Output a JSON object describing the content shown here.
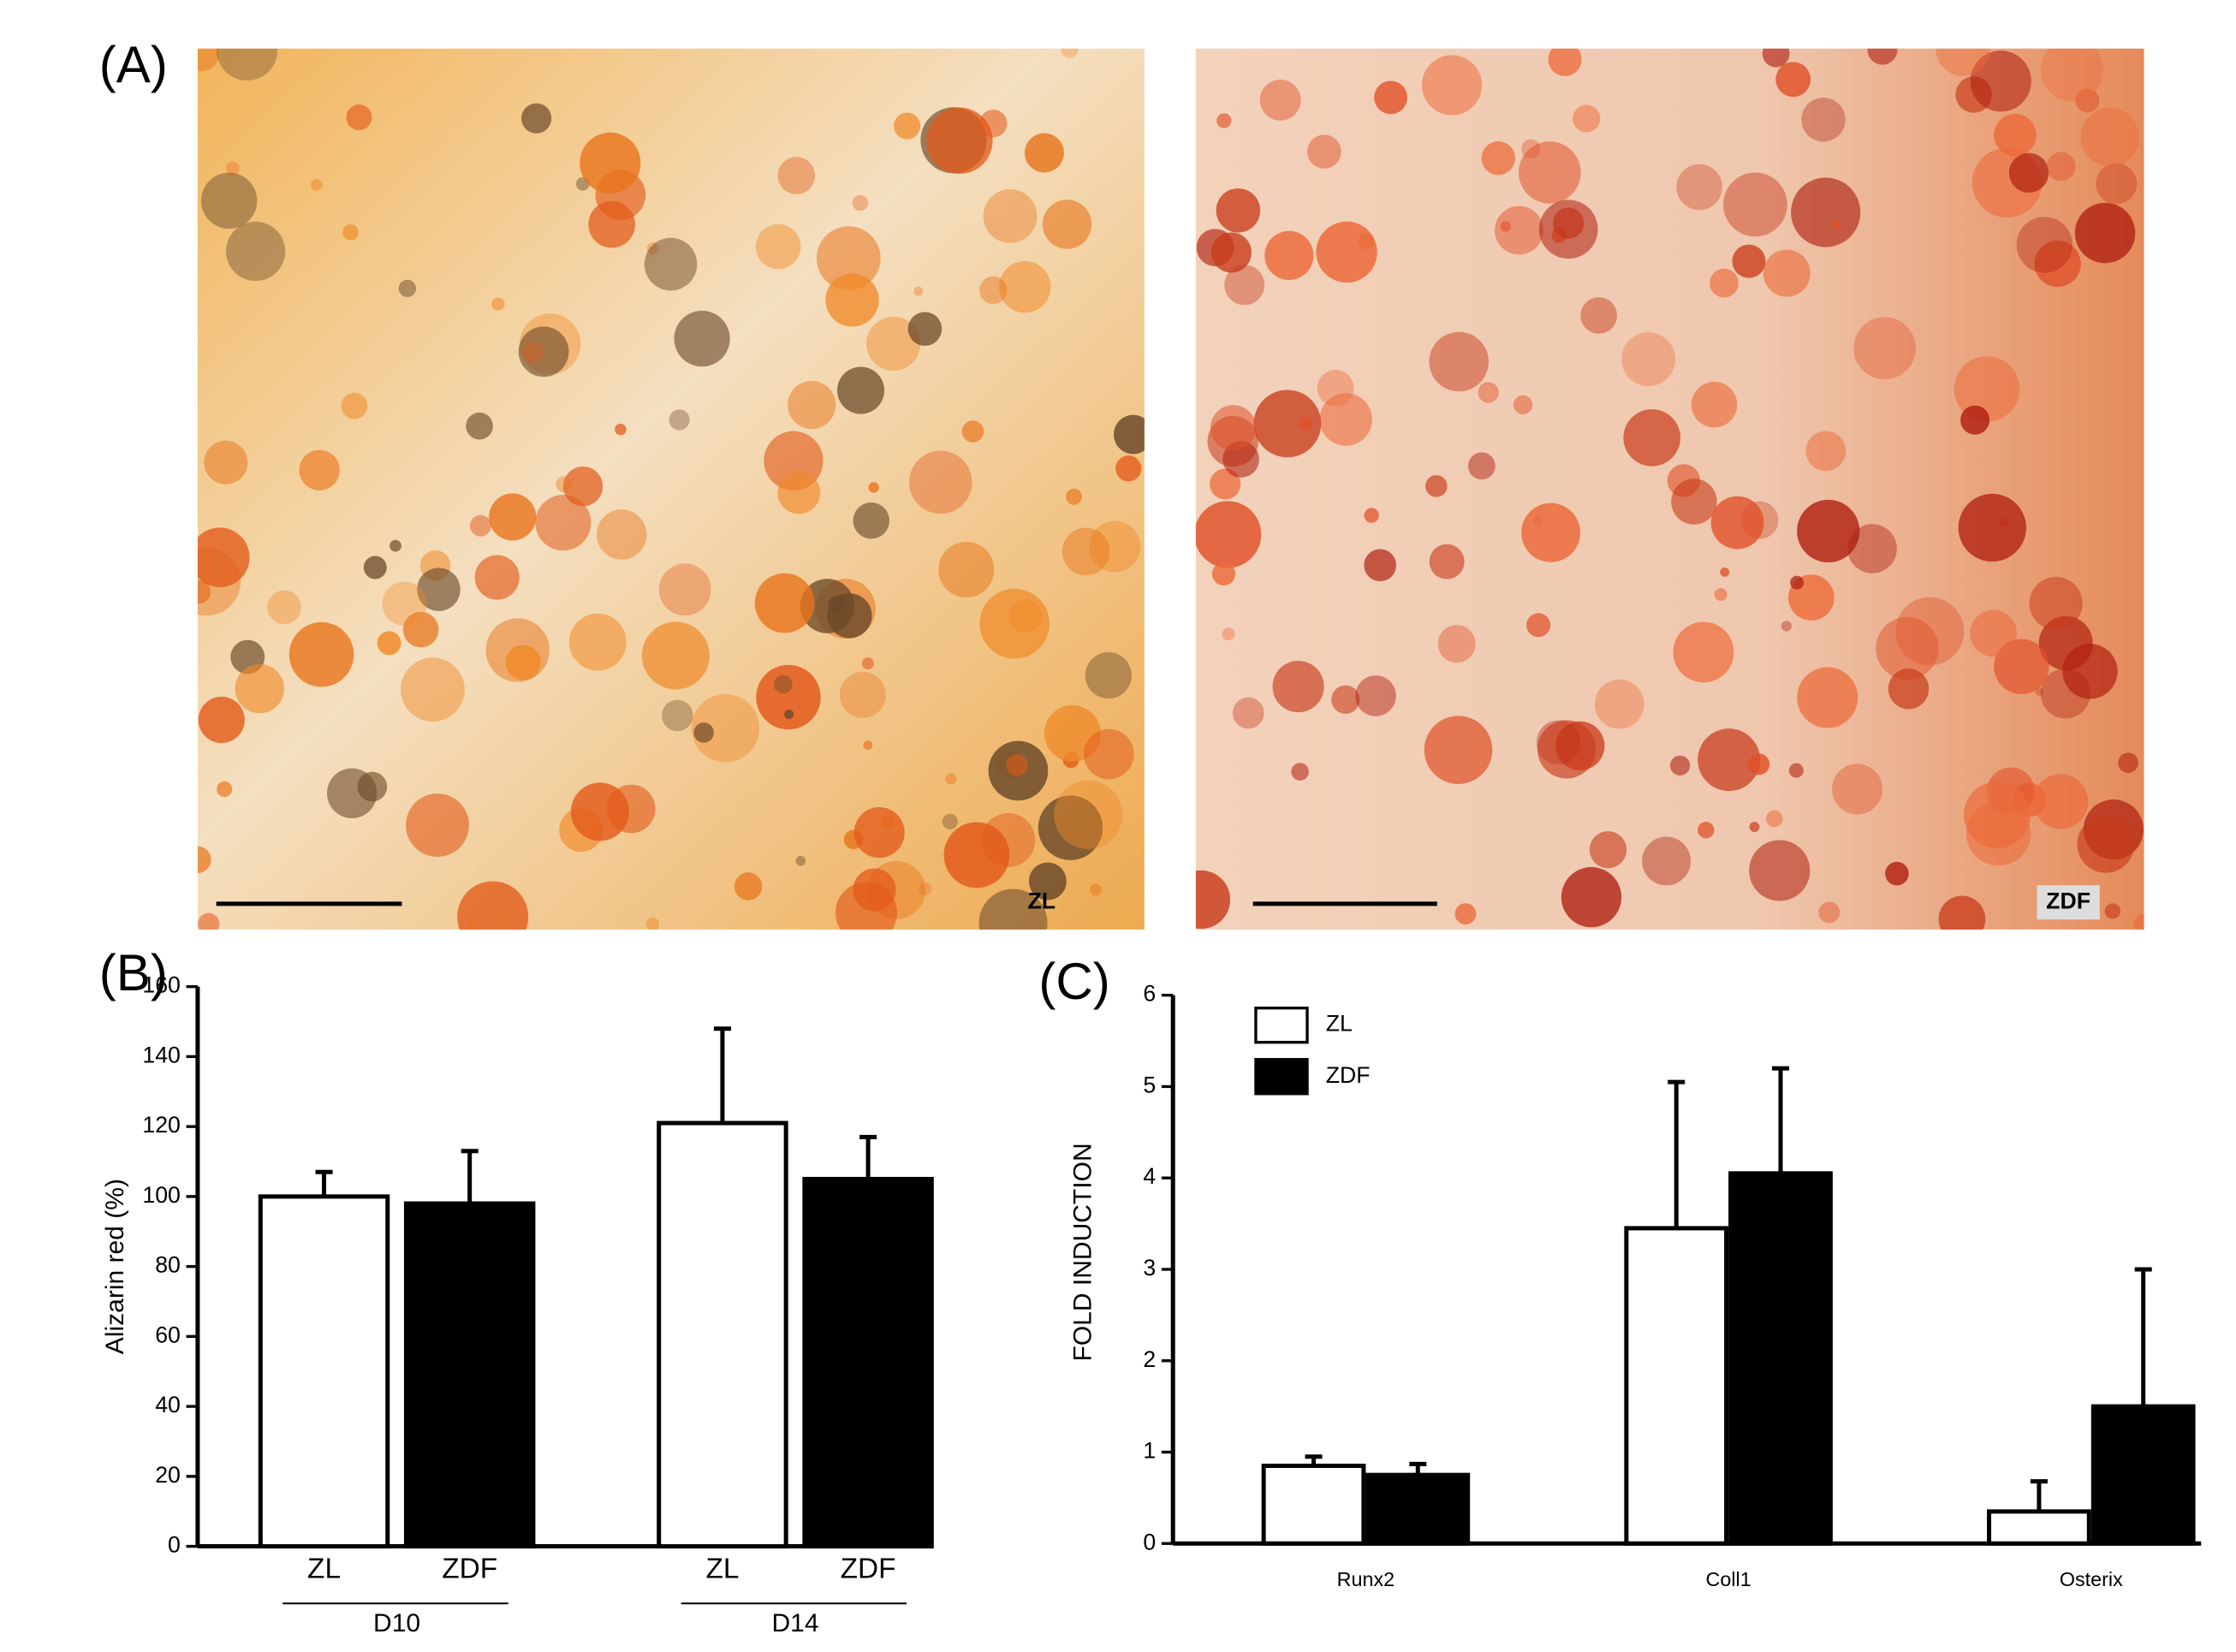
{
  "panel_a": {
    "label": "(A)",
    "images": [
      {
        "label": "ZL"
      },
      {
        "label": "ZDF"
      }
    ]
  },
  "chart_data": [
    {
      "type": "bar",
      "panel_label": "(B)",
      "y_label": "Alizarin red (%)",
      "categories": [
        "D10",
        "D14"
      ],
      "series": [
        {
          "name": "ZL",
          "color": "#ffffff",
          "values": [
            100,
            121
          ],
          "errors": [
            7,
            27
          ]
        },
        {
          "name": "ZDF",
          "color": "#000000",
          "values": [
            98,
            105
          ],
          "errors": [
            15,
            12
          ]
        }
      ],
      "ylim": [
        0,
        160
      ],
      "yticks": [
        0,
        20,
        40,
        60,
        80,
        100,
        120,
        140,
        160
      ],
      "legend": false
    },
    {
      "type": "bar",
      "panel_label": "(C)",
      "y_label": "FOLD INDUCTION",
      "categories": [
        "Runx2",
        "Coll1",
        "Osterix"
      ],
      "series": [
        {
          "name": "ZL",
          "color": "#ffffff",
          "values": [
            0.85,
            3.45,
            0.35
          ],
          "errors": [
            0.1,
            1.6,
            0.33
          ]
        },
        {
          "name": "ZDF",
          "color": "#000000",
          "values": [
            0.75,
            4.05,
            1.5
          ],
          "errors": [
            0.12,
            1.15,
            1.5
          ]
        }
      ],
      "ylim": [
        0,
        6
      ],
      "yticks": [
        0,
        1,
        2,
        3,
        4,
        5,
        6
      ],
      "legend": "top-left"
    }
  ]
}
